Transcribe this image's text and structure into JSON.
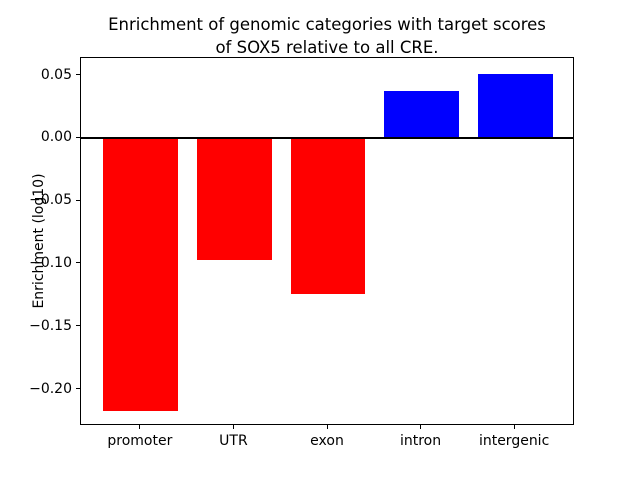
{
  "chart_data": {
    "type": "bar",
    "title": "Enrichment of genomic categories with target scores\nof SOX5 relative to all CRE.",
    "xlabel": "",
    "ylabel": "Enrichment (log10)",
    "categories": [
      "promoter",
      "UTR",
      "exon",
      "intron",
      "intergenic"
    ],
    "values": [
      -0.217,
      -0.097,
      -0.124,
      0.038,
      0.051
    ],
    "bar_colors": [
      "#ff0000",
      "#ff0000",
      "#ff0000",
      "#0000ff",
      "#0000ff"
    ],
    "negative_color": "#ff0000",
    "positive_color": "#0000ff",
    "ylim": [
      -0.229,
      0.064
    ],
    "yticks": [
      0.05,
      0.0,
      -0.05,
      -0.1,
      -0.15,
      -0.2
    ],
    "zero_line_at": 0,
    "grid": false,
    "legend": "none",
    "spine_color": "#000000",
    "background": "#ffffff"
  }
}
